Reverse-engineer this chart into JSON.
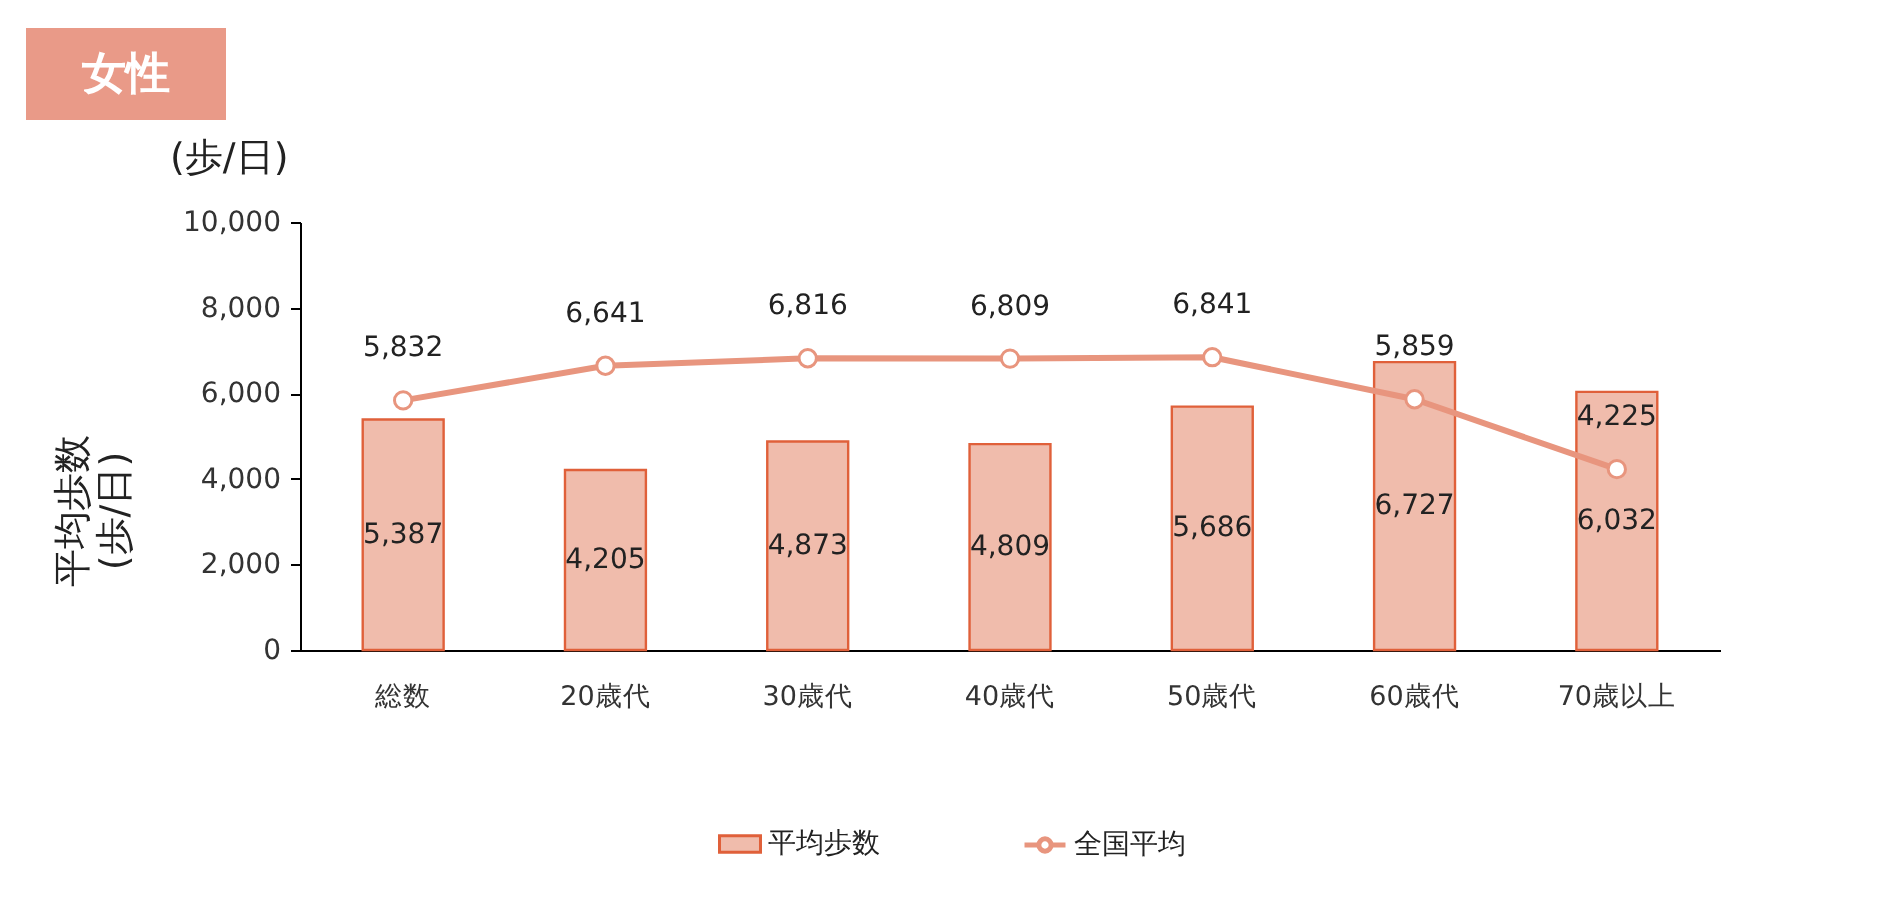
{
  "chart_data": {
    "type": "bar",
    "title": "女性",
    "ylabel": "平均歩数\n(歩/日)",
    "annotations": [
      "(歩/日)"
    ],
    "categories": [
      "総数",
      "20歳代",
      "30歳代",
      "40歳代",
      "50歳代",
      "60歳代",
      "70歳以上"
    ],
    "series": [
      {
        "name": "平均歩数",
        "color": "#f0bcac",
        "values": [
          5387,
          4205,
          4873,
          4809,
          5686,
          6727,
          6032
        ],
        "value_labels": [
          "5,387",
          "4,205",
          "4,873",
          "4,809",
          "5,686",
          "6,727",
          "6,032"
        ]
      },
      {
        "name": "全国平均",
        "type": "line",
        "color": "#e8957e",
        "values": [
          5832,
          6641,
          6816,
          6809,
          6841,
          5859,
          4225
        ],
        "value_labels": [
          "5,832",
          "6,641",
          "6,816",
          "6,809",
          "6,841",
          "5,859",
          "4,225"
        ]
      }
    ],
    "ylim": [
      0,
      10000
    ],
    "yticks": [
      0,
      {
        "value": 2000,
        "label": "2,000"
      },
      {
        "value": 4000,
        "label": "4,000"
      },
      {
        "value": 6000,
        "label": "6,000"
      },
      {
        "value": 8000,
        "label": "8,000"
      },
      {
        "value": 10000,
        "label": "10,000"
      }
    ],
    "marker": "circle",
    "legend": "bottom"
  }
}
